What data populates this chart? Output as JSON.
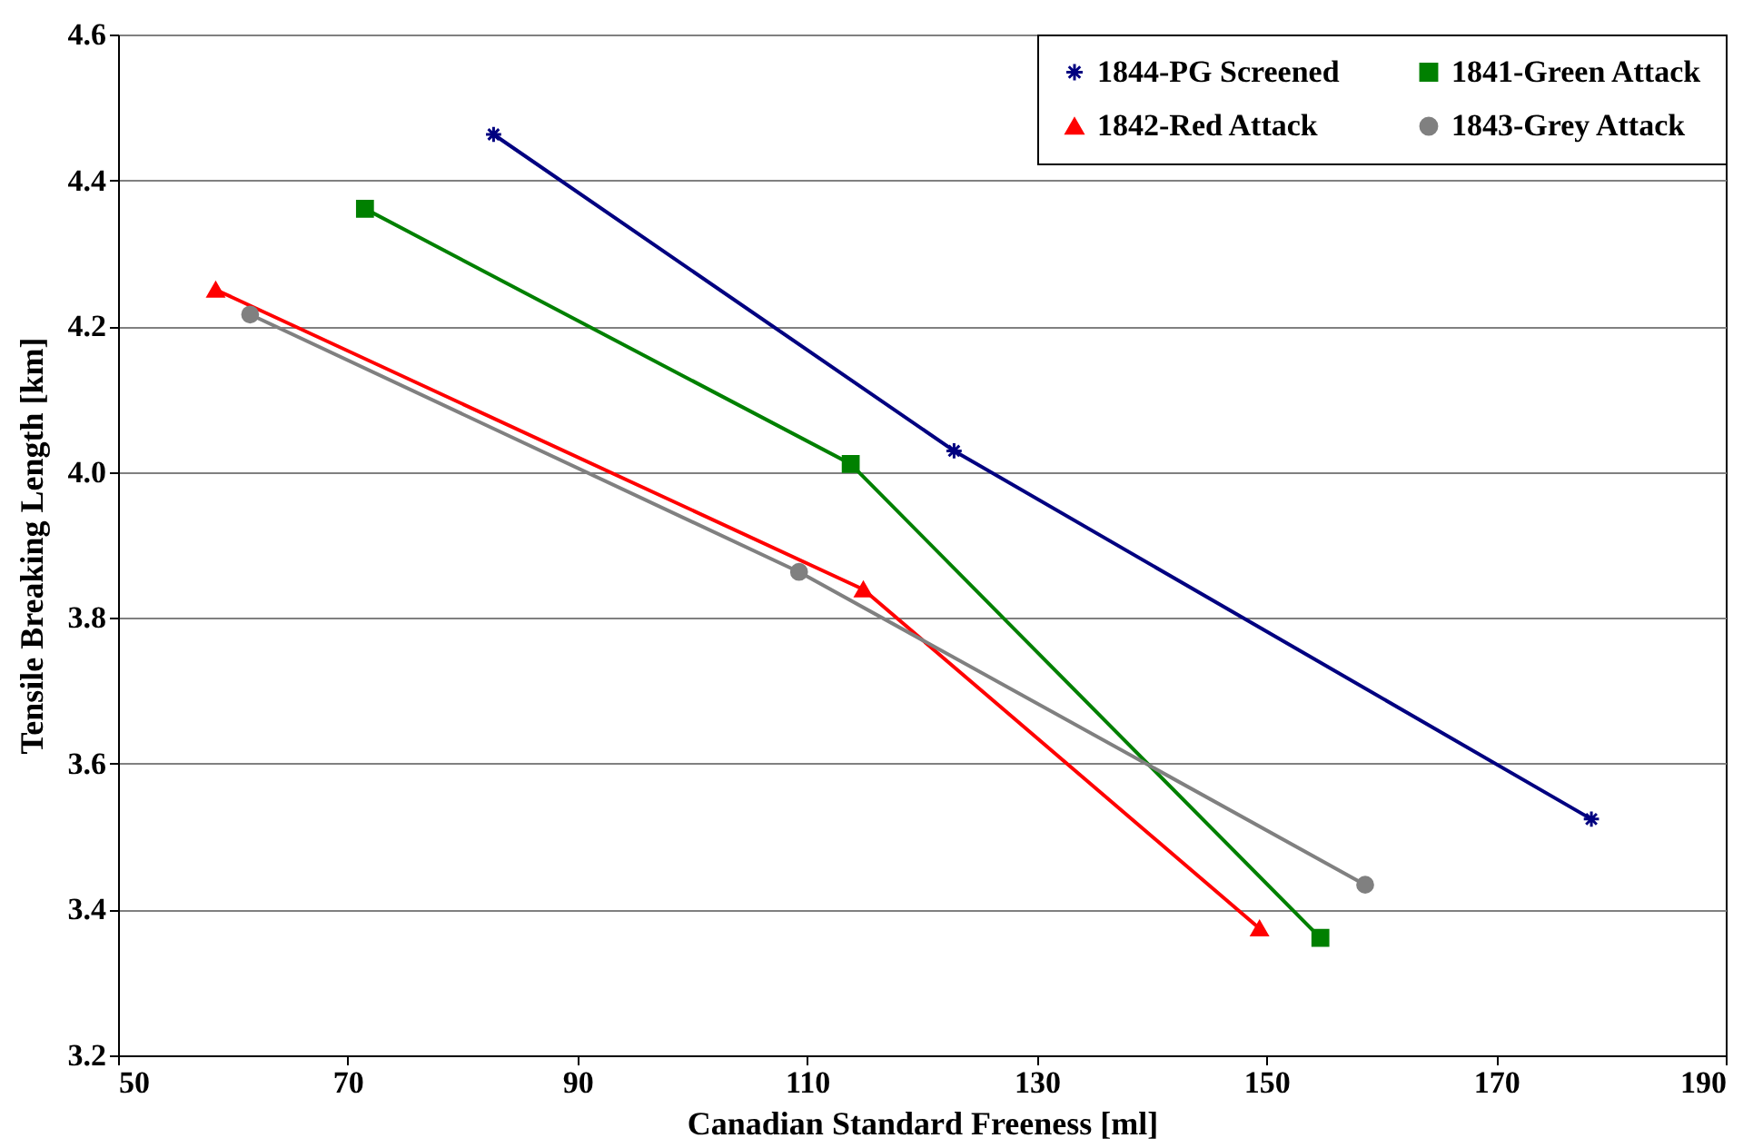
{
  "chart_data": {
    "type": "line",
    "xlabel": "Canadian Standard Freeness  [ml]",
    "ylabel": "Tensile Breaking Length  [km]",
    "xlim": [
      50,
      190
    ],
    "xticks": [
      50,
      70,
      90,
      110,
      130,
      150,
      170,
      190
    ],
    "ylim": [
      3.2,
      4.6
    ],
    "yticks": [
      3.2,
      3.4,
      3.6,
      3.8,
      {
        "value": 4,
        "label": "4.0"
      },
      4.2,
      4.4,
      4.6
    ],
    "grid": "y",
    "legend": "top right",
    "line_style": "solid",
    "series": [
      {
        "name": "1844-PG Screened",
        "color": "#000080",
        "marker": "cross",
        "x": [
          82.7,
          122.8,
          178.3
        ],
        "values": [
          4.463,
          4.029,
          3.524
        ]
      },
      {
        "name": "1841-Green Attack",
        "color": "#008000",
        "marker": "square",
        "x": [
          71.5,
          113.8,
          154.7
        ],
        "values": [
          4.361,
          4.011,
          3.361
        ]
      },
      {
        "name": "1842-Red Attack",
        "color": "#ff0000",
        "marker": "triangle",
        "x": [
          58.5,
          114.9,
          149.4
        ],
        "values": [
          4.25,
          3.839,
          3.374
        ]
      },
      {
        "name": "1843-Grey Attack",
        "color": "#808080",
        "marker": "circle",
        "x": [
          61.5,
          109.3,
          158.6
        ],
        "values": [
          4.216,
          3.863,
          3.434
        ]
      }
    ]
  }
}
